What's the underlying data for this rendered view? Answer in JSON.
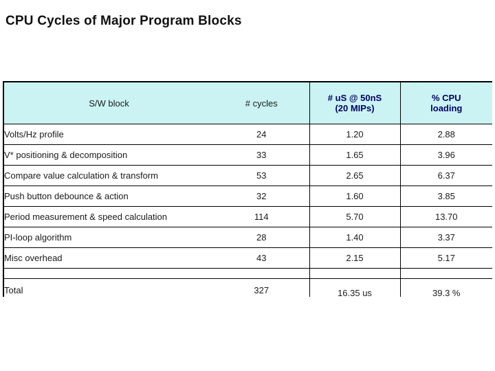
{
  "title": "CPU Cycles of Major Program Blocks",
  "table": {
    "header_bg": "#cbf3f3",
    "accent_color": "#000066",
    "border_color": "#000000",
    "columns": [
      {
        "line1": "S/W block",
        "line2": ""
      },
      {
        "line1": "# cycles",
        "line2": ""
      },
      {
        "line1": "# uS @ 50nS",
        "line2": "(20 MIPs)"
      },
      {
        "line1": "% CPU",
        "line2": "loading"
      }
    ],
    "rows": [
      {
        "block": "Volts/Hz profile",
        "cycles": "24",
        "us": "1.20",
        "cpu": "2.88"
      },
      {
        "block": "V* positioning & decomposition",
        "cycles": "33",
        "us": "1.65",
        "cpu": "3.96"
      },
      {
        "block": "Compare value calculation & transform",
        "cycles": "53",
        "us": "2.65",
        "cpu": "6.37"
      },
      {
        "block": "Push button debounce & action",
        "cycles": "32",
        "us": "1.60",
        "cpu": "3.85"
      },
      {
        "block": "Period measurement & speed calculation",
        "cycles": "114",
        "us": "5.70",
        "cpu": "13.70"
      },
      {
        "block": "PI-loop algorithm",
        "cycles": "28",
        "us": "1.40",
        "cpu": "3.37"
      },
      {
        "block": "Misc overhead",
        "cycles": "43",
        "us": "2.15",
        "cpu": "5.17"
      }
    ],
    "total": {
      "block": "Total",
      "cycles": "327",
      "us": "16.35 us",
      "cpu": "39.3 %"
    }
  }
}
